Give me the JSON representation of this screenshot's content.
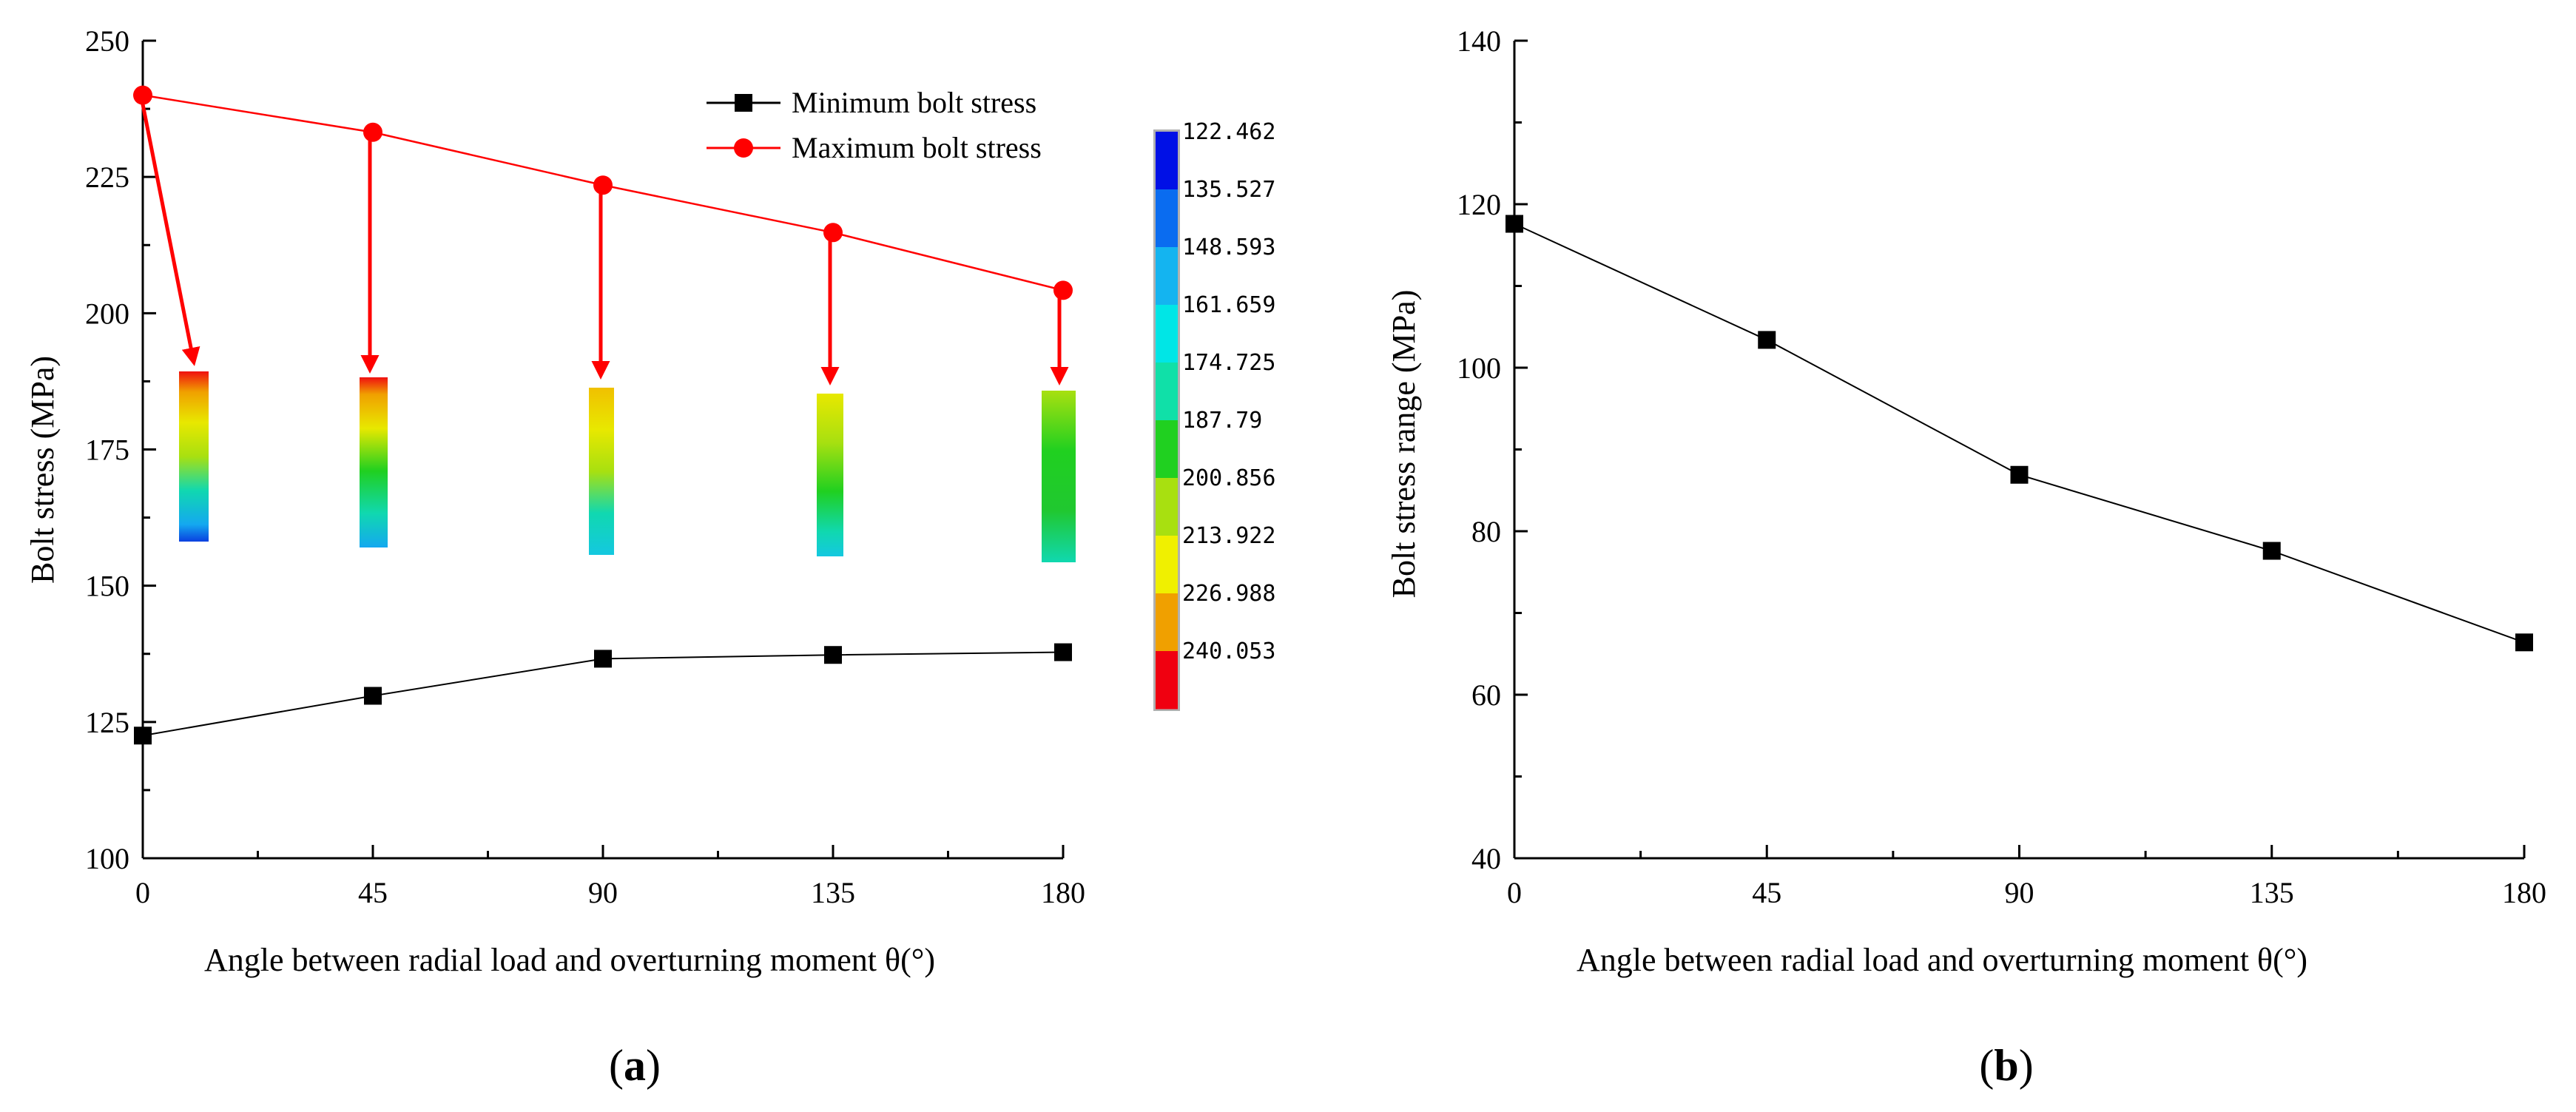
{
  "chart_data": [
    {
      "type": "line",
      "panel_label": "a",
      "xlabel": "Angle between radial load and overturning moment θ(°)",
      "ylabel": "Bolt stress (MPa)",
      "xlim": [
        0,
        180
      ],
      "ylim": [
        100,
        250
      ],
      "x": [
        0,
        45,
        90,
        135,
        180
      ],
      "x_ticks": [
        "0",
        "45",
        "90",
        "135",
        "180"
      ],
      "y_ticks": [
        "100",
        "125",
        "150",
        "175",
        "200",
        "225",
        "250"
      ],
      "series": [
        {
          "name": "Minimum bolt stress",
          "marker": "square",
          "color": "#000000",
          "values": [
            122.5,
            129.8,
            136.6,
            137.3,
            137.8
          ]
        },
        {
          "name": "Maximum bolt stress",
          "marker": "circle",
          "color": "#ff0000",
          "values": [
            240.0,
            233.2,
            223.5,
            214.8,
            204.2
          ]
        }
      ],
      "legend_position": "top-right",
      "colorbar_labels": [
        "122.462",
        "135.527",
        "148.593",
        "161.659",
        "174.725",
        "187.79",
        "200.856",
        "213.922",
        "226.988",
        "240.053"
      ],
      "colorbar_colors": [
        "#0010e6",
        "#0a6cf0",
        "#14b4f0",
        "#00e6e6",
        "#10e0a8",
        "#20d020",
        "#a8e010",
        "#f0f000",
        "#f0a000",
        "#f00010"
      ]
    },
    {
      "type": "line",
      "panel_label": "b",
      "xlabel": "Angle between radial load and overturning moment θ(°)",
      "ylabel": "Bolt stress range (MPa)",
      "xlim": [
        0,
        180
      ],
      "ylim": [
        40,
        140
      ],
      "x": [
        0,
        45,
        90,
        135,
        180
      ],
      "x_ticks": [
        "0",
        "45",
        "90",
        "135",
        "180"
      ],
      "y_ticks": [
        "40",
        "60",
        "80",
        "100",
        "120",
        "140"
      ],
      "series": [
        {
          "name": "Bolt stress range",
          "marker": "square",
          "color": "#000000",
          "values": [
            117.6,
            103.4,
            86.9,
            77.6,
            66.4
          ]
        }
      ]
    }
  ]
}
